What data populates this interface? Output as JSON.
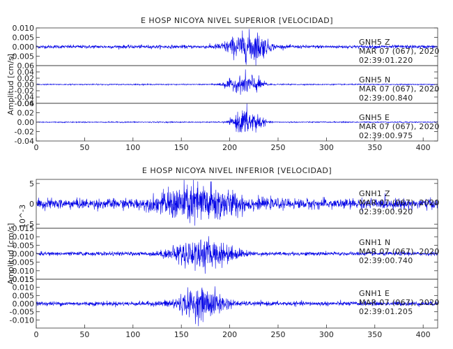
{
  "chart_data": [
    {
      "type": "line",
      "title": "E HOSP NICOYA NIVEL SUPERIOR [VELOCIDAD]",
      "ylabel": "Amplitud [cm/s]",
      "y_multiplier": "",
      "xlim": [
        0,
        415
      ],
      "x_ticks": [
        "0",
        "50",
        "100",
        "150",
        "200",
        "250",
        "300",
        "350",
        "400"
      ],
      "panels": [
        {
          "name": "Z",
          "ylim": [
            -0.01,
            0.01
          ],
          "y_ticks": [
            "0.010",
            "0.005",
            "0.000",
            "-0.005"
          ],
          "station": "GNH5 Z",
          "date": "MAR 07 (067), 2020",
          "time": "02:39:01.220",
          "noise": 0.0008,
          "bursts": [
            {
              "center": 215,
              "width": 20,
              "amp": 0.0055
            },
            {
              "center": 230,
              "width": 10,
              "amp": 0.003
            }
          ]
        },
        {
          "name": "N",
          "ylim": [
            -0.06,
            0.06
          ],
          "y_ticks": [
            "0.06",
            "0.04",
            "0.02",
            "0.00",
            "-0.02",
            "-0.04",
            "-0.06"
          ],
          "station": "GNH5 N",
          "date": "MAR 07 (067), 2020",
          "time": "02:39:00.840",
          "noise": 0.0015,
          "bursts": [
            {
              "center": 220,
              "width": 13,
              "amp": 0.03
            },
            {
              "center": 200,
              "width": 10,
              "amp": 0.01
            }
          ]
        },
        {
          "name": "E",
          "ylim": [
            -0.04,
            0.04
          ],
          "y_ticks": [
            "0.04",
            "0.02",
            "0.00",
            "-0.02",
            "-0.04"
          ],
          "station": "GNH5 E",
          "date": "MAR 07 (067), 2020",
          "time": "02:39:00.975",
          "noise": 0.001,
          "bursts": [
            {
              "center": 215,
              "width": 11,
              "amp": 0.024
            },
            {
              "center": 228,
              "width": 8,
              "amp": 0.012
            }
          ]
        }
      ]
    },
    {
      "type": "line",
      "title": "E HOSP NICOYA NIVEL INFERIOR [VELOCIDAD]",
      "ylabel": "Amplitud [cm/s]",
      "y_multiplier": "10^-3",
      "xlim": [
        0,
        415
      ],
      "x_ticks": [
        "0",
        "50",
        "100",
        "150",
        "200",
        "250",
        "300",
        "350",
        "400"
      ],
      "panels": [
        {
          "name": "Z",
          "ylim": [
            -6,
            6
          ],
          "y_ticks": [
            "5",
            "0",
            "-5"
          ],
          "station": "GNH1 Z",
          "date": "MAR 07 (067), 2020",
          "time": "02:39:00.920",
          "noise": 1.1,
          "bursts": [
            {
              "center": 160,
              "width": 30,
              "amp": 3.6
            },
            {
              "center": 195,
              "width": 25,
              "amp": 1.5
            }
          ]
        },
        {
          "name": "N",
          "ylim": [
            -0.015,
            0.015
          ],
          "y_ticks": [
            "0.015",
            "0.010",
            "0.005",
            "0.000",
            "-0.005",
            "-0.010",
            "-0.015"
          ],
          "station": "GNH1 N",
          "date": "MAR 07 (067), 2020",
          "time": "02:39:00.740",
          "noise": 0.001,
          "bursts": [
            {
              "center": 165,
              "width": 25,
              "amp": 0.007
            },
            {
              "center": 195,
              "width": 18,
              "amp": 0.003
            }
          ]
        },
        {
          "name": "E",
          "ylim": [
            -0.015,
            0.015
          ],
          "y_ticks": [
            "0.015",
            "0.010",
            "0.005",
            "0.000",
            "-0.005",
            "-0.010"
          ],
          "station": "GNH1 E",
          "date": "MAR 07 (067), 2020",
          "time": "02:39:01.205",
          "noise": 0.0012,
          "bursts": [
            {
              "center": 165,
              "width": 22,
              "amp": 0.0065
            },
            {
              "center": 185,
              "width": 15,
              "amp": 0.003
            }
          ]
        }
      ]
    }
  ]
}
